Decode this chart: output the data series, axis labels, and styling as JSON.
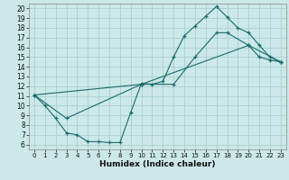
{
  "xlabel": "Humidex (Indice chaleur)",
  "bg_color": "#cce8e8",
  "grid_color": "#aacfcf",
  "line_color": "#1a6b6b",
  "xlim": [
    -0.5,
    23.5
  ],
  "ylim": [
    5.5,
    20.5
  ],
  "xticks": [
    0,
    1,
    2,
    3,
    4,
    5,
    6,
    7,
    8,
    9,
    10,
    11,
    12,
    13,
    14,
    15,
    16,
    17,
    18,
    19,
    20,
    21,
    22,
    23
  ],
  "yticks": [
    6,
    7,
    8,
    9,
    10,
    11,
    12,
    13,
    14,
    15,
    16,
    17,
    18,
    19,
    20
  ],
  "line1_x": [
    0,
    1,
    2,
    3,
    4,
    5,
    6,
    7,
    8,
    9,
    10,
    11,
    12,
    13,
    14,
    15,
    16,
    17,
    18,
    19,
    20,
    21,
    22,
    23
  ],
  "line1_y": [
    11.1,
    10.0,
    8.7,
    7.2,
    7.0,
    6.3,
    6.3,
    6.2,
    6.2,
    9.3,
    12.3,
    12.2,
    12.5,
    15.0,
    17.2,
    18.2,
    19.2,
    20.2,
    19.1,
    18.0,
    17.5,
    16.2,
    15.0,
    14.5
  ],
  "line2_x": [
    0,
    3,
    10,
    13,
    15,
    17,
    18,
    20,
    21,
    22,
    23
  ],
  "line2_y": [
    11.1,
    8.7,
    12.2,
    12.2,
    15.0,
    17.5,
    17.5,
    16.2,
    15.0,
    14.7,
    14.5
  ],
  "line3_x": [
    0,
    10,
    20,
    23
  ],
  "line3_y": [
    11.1,
    12.2,
    16.2,
    14.5
  ]
}
